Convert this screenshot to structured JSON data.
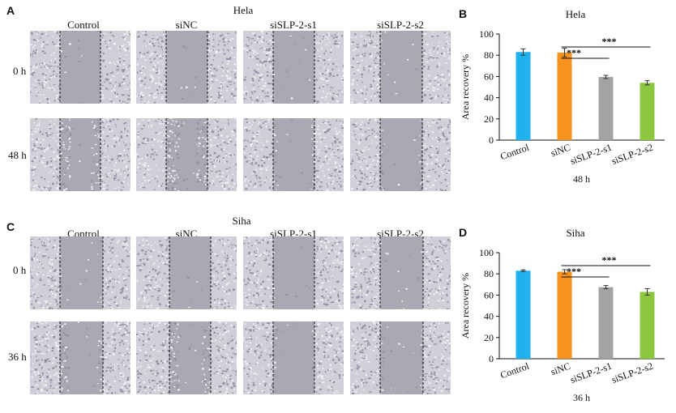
{
  "panels": {
    "A": {
      "letter": "A",
      "title": "Hela",
      "columns": [
        "Control",
        "siNC",
        "siSLP-2-s1",
        "siSLP-2-s2"
      ],
      "rows": [
        "0 h",
        "48 h"
      ]
    },
    "C": {
      "letter": "C",
      "title": "Siha",
      "columns": [
        "Control",
        "siNC",
        "siSLP-2-s1",
        "siSLP-2-s2"
      ],
      "rows": [
        "0 h",
        "36 h"
      ]
    },
    "B": {
      "letter": "B"
    },
    "D": {
      "letter": "D"
    }
  },
  "chart_data": [
    {
      "type": "bar",
      "title": "Hela",
      "xlabel": "48 h",
      "ylabel": "Area recovery %",
      "categories": [
        "Control",
        "siNC",
        "siSLP-2-s1",
        "siSLP-2-s2"
      ],
      "values": [
        83,
        82.5,
        59.5,
        54
      ],
      "errors": [
        3,
        4,
        1.5,
        2
      ],
      "colors": [
        "#1fb2ef",
        "#f7931e",
        "#a3a3a3",
        "#8dc63f"
      ],
      "ylim": [
        0,
        100
      ],
      "yticks": [
        0,
        20,
        40,
        60,
        80,
        100
      ],
      "significance": [
        {
          "from": "siNC",
          "to": "siSLP-2-s1",
          "label": "***"
        },
        {
          "from": "siNC",
          "to": "siSLP-2-s2",
          "label": "***"
        }
      ],
      "grid": false
    },
    {
      "type": "bar",
      "title": "Siha",
      "xlabel": "36 h",
      "ylabel": "Area recovery %",
      "categories": [
        "Control",
        "siNC",
        "siSLP-2-s1",
        "siSLP-2-s2"
      ],
      "values": [
        83,
        82,
        67.5,
        63
      ],
      "errors": [
        0.8,
        2,
        1.5,
        3
      ],
      "colors": [
        "#1fb2ef",
        "#f7931e",
        "#a3a3a3",
        "#8dc63f"
      ],
      "ylim": [
        0,
        100
      ],
      "yticks": [
        0,
        20,
        40,
        60,
        80,
        100
      ],
      "significance": [
        {
          "from": "siNC",
          "to": "siSLP-2-s1",
          "label": "***"
        },
        {
          "from": "siNC",
          "to": "siSLP-2-s2",
          "label": "***"
        }
      ],
      "grid": false
    }
  ]
}
